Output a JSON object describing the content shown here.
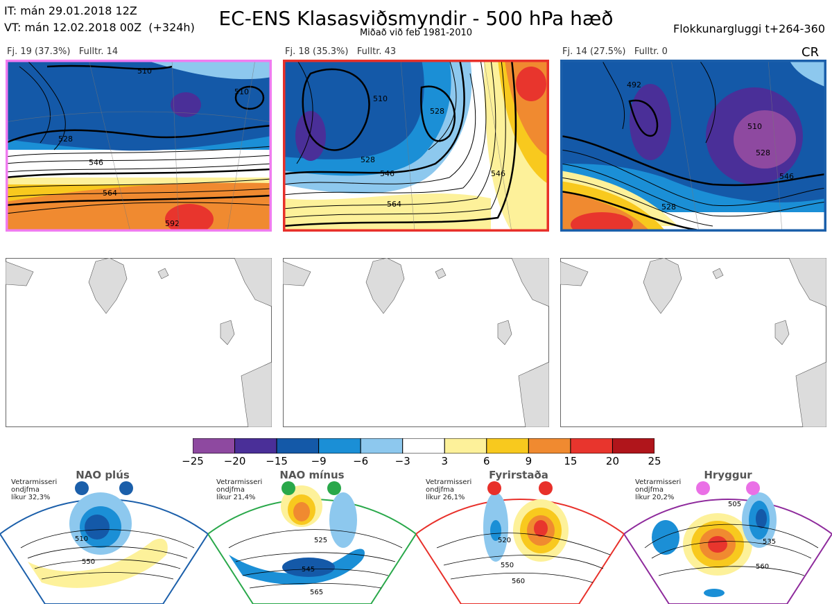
{
  "header": {
    "it_line": "IT: mán 29.01.2018 12Z",
    "vt_line": "VT: mán 12.02.2018 00Z  (+324h)",
    "title": "EC-ENS Klasasviðsmyndir - 500 hPa hæð",
    "subtitle": "Miðað við feb 1981-2010",
    "window": "Flokkunargluggi t+264-360"
  },
  "clusters": [
    {
      "label": "Fj. 19 (37.3%)   Fulltr. 14",
      "border": "#f07cf0",
      "contours": [
        "510",
        "528",
        "546",
        "564",
        "592",
        "510"
      ]
    },
    {
      "label": "Fj. 18 (35.3%)   Fulltr. 43",
      "border": "#e8302a",
      "contours": [
        "510",
        "528",
        "546",
        "564",
        "546",
        "528"
      ]
    },
    {
      "label": "Fj. 14 (27.5%)   Fulltr. 0",
      "border": "#1b5faa",
      "contours": [
        "510",
        "528",
        "546",
        "528",
        "492"
      ]
    }
  ],
  "cluster_tag": "CR",
  "colorbar": {
    "ticks": [
      "−25",
      "−20",
      "−15",
      "−9",
      "−6",
      "−3",
      "3",
      "6",
      "9",
      "15",
      "20",
      "25"
    ],
    "colors": [
      "#8e49a0",
      "#4a2f98",
      "#1459a8",
      "#1b8fd6",
      "#8dc8ee",
      "#ffffff",
      "#fdf19a",
      "#f8c91e",
      "#f08a30",
      "#e8352d",
      "#b0151b"
    ]
  },
  "regimes": [
    {
      "name": "NAO plús",
      "note": "Vetrarmisseri\nondjfma\nlíkur 32,3%",
      "color": "#1b5faa",
      "labels": [
        "510",
        "550"
      ]
    },
    {
      "name": "NAO mínus",
      "note": "Vetrarmisseri\nondjfma\nlíkur 21,4%",
      "color": "#29a84a",
      "labels": [
        "525",
        "545",
        "565"
      ]
    },
    {
      "name": "Fyrirstaða",
      "note": "Vetrarmisseri\nondjfma\nlíkur 26,1%",
      "color": "#e8302a",
      "labels": [
        "520",
        "550",
        "560"
      ]
    },
    {
      "name": "Hryggur",
      "note": "Vetrarmisseri\nondjfma\nlíkur 20,2%",
      "color": "#ea70e6",
      "labels": [
        "505",
        "535",
        "560"
      ]
    }
  ]
}
